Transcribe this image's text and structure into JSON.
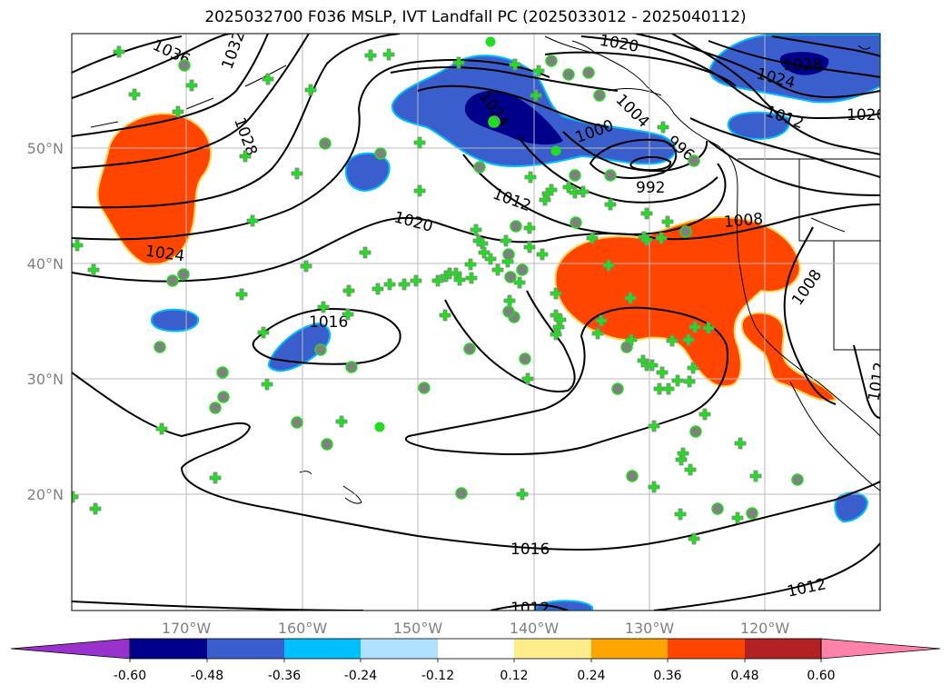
{
  "title": "2025032700 F036 MSLP, IVT Landfall PC (2025033012 - 2025040112)",
  "map": {
    "lon_ticks": [
      "170°W",
      "160°W",
      "150°W",
      "140°W",
      "130°W",
      "120°W"
    ],
    "lat_ticks": [
      "50°N",
      "40°N",
      "30°N",
      "20°N"
    ],
    "gridlines": true
  },
  "isobar_labels": [
    "1036",
    "1032",
    "1028",
    "1024",
    "1020",
    "1016",
    "1012",
    "1008",
    "1004",
    "1000",
    "996",
    "992",
    "1024",
    "1028",
    "1024",
    "1012",
    "1020",
    "1020",
    "1008",
    "1012",
    "1016",
    "1012",
    "1012"
  ],
  "colorbar": {
    "ticks": [
      "-0.60",
      "-0.48",
      "-0.36",
      "-0.24",
      "-0.12",
      "0.12",
      "0.24",
      "0.36",
      "0.48",
      "0.60"
    ],
    "colors": [
      "#9932cc",
      "#00008b",
      "#3a5fcd",
      "#00bfff",
      "#b0e2ff",
      "#ffffff",
      "#ffec8b",
      "#ffa500",
      "#ff4500",
      "#b22222",
      "#ff82ab"
    ]
  },
  "colors": {
    "negative_fill": "#3a5fcd",
    "negative_core": "#00008b",
    "positive_fill": "#ff4500",
    "marker_green": "#22dd22",
    "marker_gray": "#808080"
  }
}
